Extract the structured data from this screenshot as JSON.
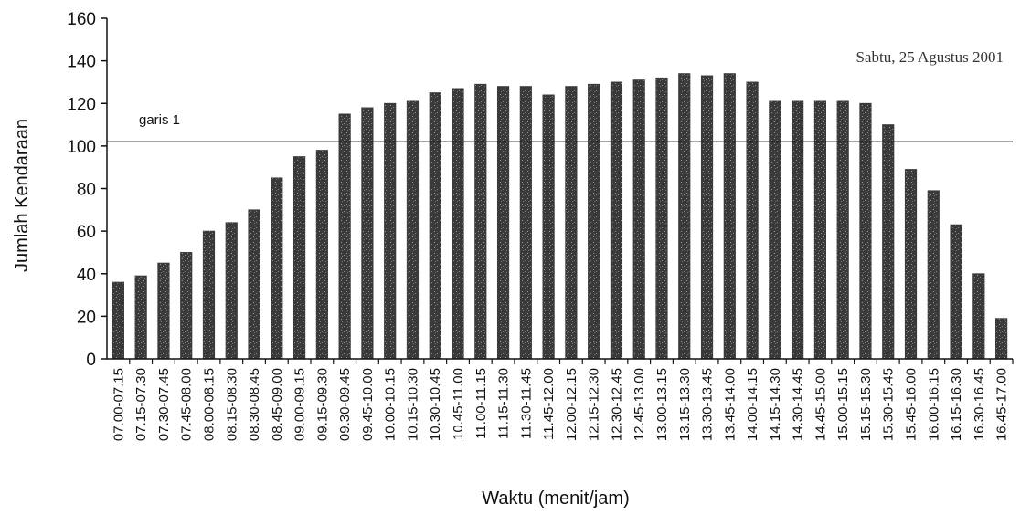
{
  "chart_data": {
    "type": "bar",
    "title": "",
    "xlabel": "Waktu (menit/jam)",
    "ylabel": "Jumlah Kendaraan",
    "ylim": [
      0,
      160
    ],
    "yticks": [
      0,
      20,
      40,
      60,
      80,
      100,
      120,
      140,
      160
    ],
    "grid": false,
    "reference_line": {
      "label": "garis 1",
      "value": 102
    },
    "date_note": "Sabtu, 25 Agustus 2001",
    "categories": [
      "07.00-07.15",
      "07.15-07.30",
      "07.30-07.45",
      "07.45-08.00",
      "08.00-08.15",
      "08.15-08.30",
      "08.30-08.45",
      "08.45-09.00",
      "09.00-09.15",
      "09.15-09.30",
      "09.30-09.45",
      "09.45-10.00",
      "10.00-10.15",
      "10.15-10.30",
      "10.30-10.45",
      "10.45-11.00",
      "11.00-11.15",
      "11.15-11.30",
      "11.30-11.45",
      "11.45-12.00",
      "12.00-12.15",
      "12.15-12.30",
      "12.30-12.45",
      "12.45-13.00",
      "13.00-13.15",
      "13.15-13.30",
      "13.30-13.45",
      "13.45-14.00",
      "14.00-14.15",
      "14.15-14.30",
      "14.30-14.45",
      "14.45-15.00",
      "15.00-15.15",
      "15.15-15.30",
      "15.30-15.45",
      "15.45-16.00",
      "16.00-16.15",
      "16.15-16.30",
      "16.30-16.45",
      "16.45-17.00"
    ],
    "values": [
      36,
      39,
      45,
      50,
      60,
      64,
      70,
      85,
      95,
      98,
      115,
      118,
      120,
      121,
      125,
      127,
      129,
      128,
      128,
      124,
      128,
      129,
      130,
      131,
      132,
      134,
      133,
      134,
      130,
      121,
      121,
      121,
      121,
      120,
      110,
      89,
      79,
      63,
      40,
      19
    ],
    "bar_color": "#3a3a3a"
  }
}
